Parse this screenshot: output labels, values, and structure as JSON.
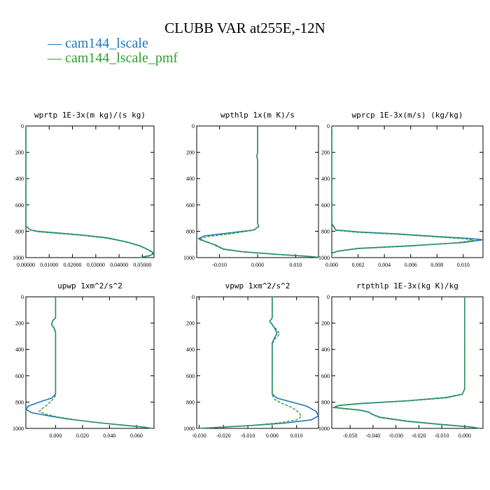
{
  "title": "CLUBB VAR at255E,-12N",
  "colors": {
    "cam144_lscale": "#1f77b4",
    "cam144_lscale_pmf": "#2ca02c"
  },
  "legend": [
    {
      "dash": "—",
      "label": "cam144_lscale"
    },
    {
      "dash": "—",
      "label": "cam144_lscale_pmf"
    }
  ],
  "chart_data": [
    {
      "type": "line",
      "title": "wprtp  1E-3x(m kg)/(s kg)",
      "xlim": [
        0,
        0.055
      ],
      "ylim": [
        1000,
        0
      ],
      "xticks": [
        0,
        0.01,
        0.02,
        0.03,
        0.04,
        0.05
      ],
      "xtick_labels": [
        "0.00000",
        "0.01000",
        "0.02000",
        "0.03000",
        "0.04000",
        "0.05000"
      ],
      "yticks": [
        0,
        200,
        400,
        600,
        800,
        1000
      ],
      "ytick_labels": [
        "0",
        "200",
        "400",
        "600",
        "800",
        "1000"
      ],
      "series": [
        {
          "name": "cam144_lscale",
          "color": "#1f77b4",
          "points": [
            [
              0,
              0
            ],
            [
              0,
              700
            ],
            [
              0,
              760
            ],
            [
              0.002,
              790
            ],
            [
              0.005,
              800
            ],
            [
              0.015,
              815
            ],
            [
              0.025,
              830
            ],
            [
              0.035,
              850
            ],
            [
              0.043,
              880
            ],
            [
              0.049,
              910
            ],
            [
              0.052,
              935
            ],
            [
              0.054,
              955
            ],
            [
              0.055,
              972
            ],
            [
              0.053,
              985
            ],
            [
              0.05,
              995
            ],
            [
              0.049,
              1000
            ]
          ]
        },
        {
          "name": "cam144_lscale_pmf",
          "color": "#2ca02c",
          "points": [
            [
              0,
              0
            ],
            [
              0,
              700
            ],
            [
              0,
              760
            ],
            [
              0.002,
              792
            ],
            [
              0.005,
              803
            ],
            [
              0.015,
              818
            ],
            [
              0.025,
              833
            ],
            [
              0.035,
              853
            ],
            [
              0.043,
              882
            ],
            [
              0.049,
              912
            ],
            [
              0.052,
              937
            ],
            [
              0.054,
              958
            ],
            [
              0.0545,
              975
            ],
            [
              0.053,
              988
            ],
            [
              0.05,
              997
            ],
            [
              0.049,
              1000
            ]
          ]
        }
      ]
    },
    {
      "type": "line",
      "title": "wpthlp  1x(m K)/s",
      "xlim": [
        -0.016,
        0.016
      ],
      "ylim": [
        1000,
        0
      ],
      "xticks": [
        -0.01,
        0,
        0.01
      ],
      "xtick_labels": [
        "-0.010",
        "0.000",
        "0.010"
      ],
      "yticks": [
        0,
        200,
        400,
        600,
        800,
        1000
      ],
      "ytick_labels": [
        "0",
        "200",
        "400",
        "600",
        "800",
        "1000"
      ],
      "series": [
        {
          "name": "cam144_lscale",
          "color": "#1f77b4",
          "points": [
            [
              0,
              0
            ],
            [
              0,
              200
            ],
            [
              -0.0002,
              230
            ],
            [
              0,
              260
            ],
            [
              0,
              740
            ],
            [
              0.0003,
              765
            ],
            [
              -0.001,
              790
            ],
            [
              -0.008,
              815
            ],
            [
              -0.014,
              835
            ],
            [
              -0.0155,
              855
            ],
            [
              -0.014,
              875
            ],
            [
              -0.011,
              905
            ],
            [
              -0.009,
              935
            ],
            [
              -0.004,
              955
            ],
            [
              0.005,
              975
            ],
            [
              0.013,
              990
            ],
            [
              0.016,
              998
            ]
          ]
        },
        {
          "name": "cam144_lscale_pmf",
          "color": "#2ca02c",
          "points": [
            [
              0,
              0
            ],
            [
              0,
              200
            ],
            [
              -0.0002,
              230
            ],
            [
              0,
              260
            ],
            [
              0,
              740
            ],
            [
              0.0003,
              765
            ],
            [
              -0.001,
              792
            ],
            [
              -0.007,
              818
            ],
            [
              -0.013,
              840
            ],
            [
              -0.0155,
              862
            ],
            [
              -0.013,
              882
            ],
            [
              -0.011,
              910
            ],
            [
              -0.009,
              938
            ],
            [
              -0.004,
              957
            ],
            [
              0.005,
              976
            ],
            [
              0.013,
              991
            ],
            [
              0.016,
              998
            ]
          ]
        }
      ]
    },
    {
      "type": "line",
      "title": "wprcp  1E-3x(m/s) (kg/kg)",
      "xlim": [
        0,
        0.0115
      ],
      "ylim": [
        1000,
        0
      ],
      "xticks": [
        0,
        0.002,
        0.004,
        0.006,
        0.008,
        0.01
      ],
      "xtick_labels": [
        "0.000",
        "0.002",
        "0.004",
        "0.006",
        "0.008",
        "0.010"
      ],
      "yticks": [
        0,
        200,
        400,
        600,
        800,
        1000
      ],
      "ytick_labels": [
        "0",
        "200",
        "400",
        "600",
        "800",
        "1000"
      ],
      "series": [
        {
          "name": "cam144_lscale",
          "color": "#1f77b4",
          "points": [
            [
              0,
              0
            ],
            [
              0,
              740
            ],
            [
              0.0003,
              790
            ],
            [
              0.002,
              805
            ],
            [
              0.005,
              820
            ],
            [
              0.008,
              840
            ],
            [
              0.0105,
              855
            ],
            [
              0.0115,
              865
            ],
            [
              0.01,
              885
            ],
            [
              0.006,
              910
            ],
            [
              0.002,
              930
            ],
            [
              0.0005,
              950
            ],
            [
              0,
              965
            ],
            [
              0,
              1000
            ]
          ]
        },
        {
          "name": "cam144_lscale_pmf",
          "color": "#2ca02c",
          "points": [
            [
              0,
              0
            ],
            [
              0,
              740
            ],
            [
              0.0003,
              793
            ],
            [
              0.002,
              808
            ],
            [
              0.005,
              823
            ],
            [
              0.008,
              843
            ],
            [
              0.0102,
              858
            ],
            [
              0.0108,
              868
            ],
            [
              0.0095,
              887
            ],
            [
              0.006,
              912
            ],
            [
              0.002,
              932
            ],
            [
              0.0005,
              952
            ],
            [
              0,
              968
            ],
            [
              0,
              1000
            ]
          ]
        }
      ]
    },
    {
      "type": "line",
      "title": "upwp  1xm^2/s^2",
      "xlim": [
        -0.022,
        0.073
      ],
      "ylim": [
        1000,
        0
      ],
      "xticks": [
        0,
        0.02,
        0.04,
        0.06
      ],
      "xtick_labels": [
        "0.000",
        "0.020",
        "0.040",
        "0.060"
      ],
      "yticks": [
        0,
        200,
        400,
        600,
        800,
        1000
      ],
      "ytick_labels": [
        "0",
        "200",
        "400",
        "600",
        "800",
        "1000"
      ],
      "series": [
        {
          "name": "cam144_lscale",
          "color": "#1f77b4",
          "points": [
            [
              0,
              0
            ],
            [
              0,
              160
            ],
            [
              -0.002,
              180
            ],
            [
              -0.003,
              210
            ],
            [
              -0.001,
              240
            ],
            [
              0,
              270
            ],
            [
              0,
              740
            ],
            [
              -0.003,
              770
            ],
            [
              -0.012,
              800
            ],
            [
              -0.02,
              830
            ],
            [
              -0.022,
              855
            ],
            [
              -0.018,
              880
            ],
            [
              -0.005,
              905
            ],
            [
              0.01,
              930
            ],
            [
              0.03,
              955
            ],
            [
              0.05,
              975
            ],
            [
              0.065,
              990
            ],
            [
              0.072,
              1000
            ]
          ]
        },
        {
          "name": "cam144_lscale_pmf",
          "color": "#2ca02c",
          "points": [
            [
              0,
              0
            ],
            [
              0,
              160
            ],
            [
              -0.002,
              182
            ],
            [
              -0.003,
              212
            ],
            [
              -0.001,
              245
            ],
            [
              0,
              280
            ],
            [
              0,
              750
            ],
            [
              -0.002,
              780
            ],
            [
              -0.006,
              820
            ],
            [
              -0.01,
              850
            ],
            [
              -0.012,
              870
            ],
            [
              -0.008,
              890
            ],
            [
              0,
              910
            ],
            [
              0.015,
              935
            ],
            [
              0.035,
              960
            ],
            [
              0.052,
              978
            ],
            [
              0.065,
              992
            ],
            [
              0.072,
              1000
            ]
          ]
        }
      ]
    },
    {
      "type": "line",
      "title": "vpwp  1xm^2/s^2",
      "xlim": [
        -0.031,
        0.019
      ],
      "ylim": [
        1000,
        0
      ],
      "xticks": [
        -0.03,
        -0.02,
        -0.01,
        0,
        0.01
      ],
      "xtick_labels": [
        "-0.030",
        "-0.020",
        "-0.010",
        "0.000",
        "0.010"
      ],
      "yticks": [
        0,
        200,
        400,
        600,
        800,
        1000
      ],
      "ytick_labels": [
        "0",
        "200",
        "400",
        "600",
        "800",
        "1000"
      ],
      "series": [
        {
          "name": "cam144_lscale",
          "color": "#1f77b4",
          "points": [
            [
              0,
              0
            ],
            [
              0,
              160
            ],
            [
              -0.001,
              185
            ],
            [
              0,
              210
            ],
            [
              0.001,
              240
            ],
            [
              0.002,
              275
            ],
            [
              0.001,
              310
            ],
            [
              0,
              350
            ],
            [
              0,
              740
            ],
            [
              0.002,
              770
            ],
            [
              0.008,
              800
            ],
            [
              0.014,
              830
            ],
            [
              0.018,
              870
            ],
            [
              0.019,
              905
            ],
            [
              0.016,
              935
            ],
            [
              0.005,
              960
            ],
            [
              -0.01,
              980
            ],
            [
              -0.025,
              995
            ],
            [
              -0.031,
              1000
            ]
          ]
        },
        {
          "name": "cam144_lscale_pmf",
          "color": "#2ca02c",
          "points": [
            [
              0,
              0
            ],
            [
              0,
              160
            ],
            [
              -0.001,
              188
            ],
            [
              0,
              215
            ],
            [
              0.002,
              250
            ],
            [
              0.003,
              285
            ],
            [
              0.001,
              320
            ],
            [
              0,
              360
            ],
            [
              0,
              745
            ],
            [
              0.001,
              780
            ],
            [
              0.004,
              810
            ],
            [
              0.008,
              840
            ],
            [
              0.011,
              880
            ],
            [
              0.012,
              910
            ],
            [
              0.01,
              935
            ],
            [
              0.003,
              958
            ],
            [
              -0.01,
              980
            ],
            [
              -0.025,
              995
            ],
            [
              -0.031,
              1000
            ]
          ]
        }
      ]
    },
    {
      "type": "line",
      "title": "rtpthlp  1E-3x(kg K)/kg",
      "xlim": [
        -0.058,
        0.008
      ],
      "ylim": [
        1000,
        0
      ],
      "xticks": [
        -0.05,
        -0.04,
        -0.03,
        -0.02,
        -0.01,
        0
      ],
      "xtick_labels": [
        "-0.050",
        "-0.040",
        "-0.030",
        "-0.020",
        "-0.010",
        "0.000"
      ],
      "yticks": [
        0,
        200,
        400,
        600,
        800,
        1000
      ],
      "ytick_labels": [
        "0",
        "200",
        "400",
        "600",
        "800",
        "1000"
      ],
      "series": [
        {
          "name": "cam144_lscale",
          "color": "#1f77b4",
          "points": [
            [
              0,
              0
            ],
            [
              0,
              700
            ],
            [
              -0.001,
              740
            ],
            [
              -0.008,
              765
            ],
            [
              -0.025,
              790
            ],
            [
              -0.045,
              810
            ],
            [
              -0.055,
              825
            ],
            [
              -0.057,
              840
            ],
            [
              -0.052,
              850
            ],
            [
              -0.046,
              860
            ],
            [
              -0.042,
              875
            ],
            [
              -0.04,
              895
            ],
            [
              -0.037,
              915
            ],
            [
              -0.025,
              945
            ],
            [
              -0.01,
              970
            ],
            [
              0.003,
              990
            ],
            [
              0.007,
              1000
            ]
          ]
        },
        {
          "name": "cam144_lscale_pmf",
          "color": "#2ca02c",
          "points": [
            [
              0,
              0
            ],
            [
              0,
              700
            ],
            [
              -0.001,
              742
            ],
            [
              -0.008,
              768
            ],
            [
              -0.025,
              792
            ],
            [
              -0.045,
              812
            ],
            [
              -0.055,
              827
            ],
            [
              -0.057,
              842
            ],
            [
              -0.052,
              852
            ],
            [
              -0.046,
              862
            ],
            [
              -0.042,
              877
            ],
            [
              -0.04,
              898
            ],
            [
              -0.037,
              918
            ],
            [
              -0.025,
              948
            ],
            [
              -0.01,
              972
            ],
            [
              0.003,
              991
            ],
            [
              0.007,
              1000
            ]
          ]
        }
      ]
    }
  ]
}
